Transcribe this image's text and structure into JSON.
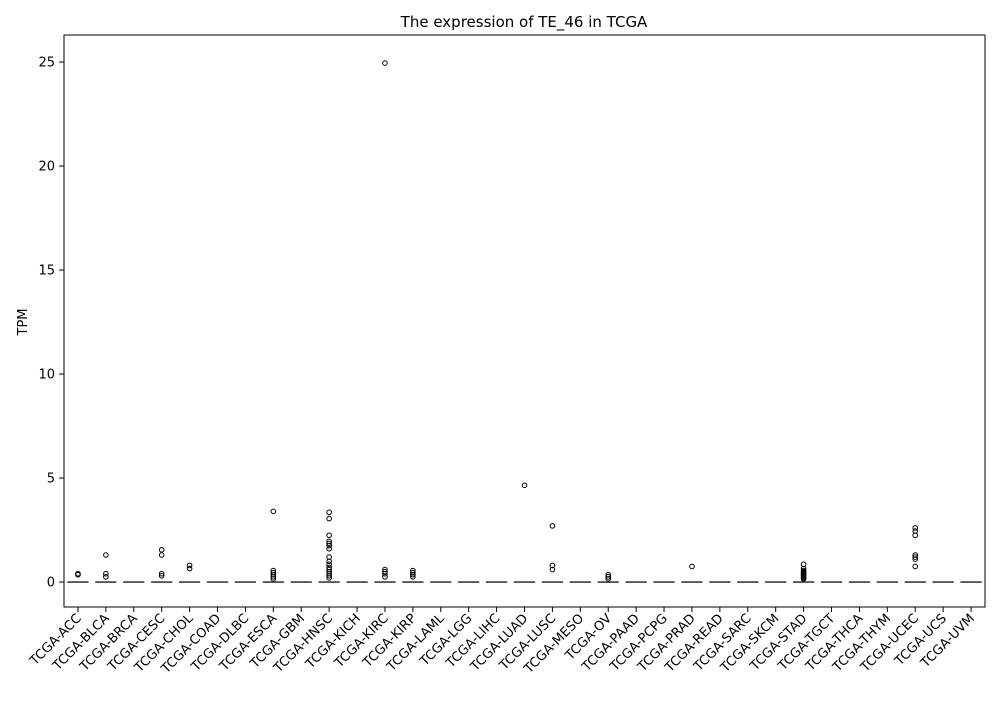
{
  "chart_data": {
    "type": "box",
    "title": "The expression of TE_46 in TCGA",
    "xlabel": "",
    "ylabel": "TPM",
    "ylim": [
      -1.2,
      26.3
    ],
    "yticks": [
      0,
      5,
      10,
      15,
      20,
      25
    ],
    "grid": false,
    "categories": [
      "TCGA-ACC",
      "TCGA-BLCA",
      "TCGA-BRCA",
      "TCGA-CESC",
      "TCGA-CHOL",
      "TCGA-COAD",
      "TCGA-DLBC",
      "TCGA-ESCA",
      "TCGA-GBM",
      "TCGA-HNSC",
      "TCGA-KICH",
      "TCGA-KIRC",
      "TCGA-KIRP",
      "TCGA-LAML",
      "TCGA-LGG",
      "TCGA-LIHC",
      "TCGA-LUAD",
      "TCGA-LUSC",
      "TCGA-MESO",
      "TCGA-OV",
      "TCGA-PAAD",
      "TCGA-PCPG",
      "TCGA-PRAD",
      "TCGA-READ",
      "TCGA-SARC",
      "TCGA-SKCM",
      "TCGA-STAD",
      "TCGA-TGCT",
      "TCGA-THCA",
      "TCGA-THYM",
      "TCGA-UCEC",
      "TCGA-UCS",
      "TCGA-UVM"
    ],
    "medians": [
      0,
      0,
      0,
      0,
      0,
      0,
      0,
      0,
      0,
      0,
      0,
      0,
      0,
      0,
      0,
      0,
      0,
      0,
      0,
      0,
      0,
      0,
      0,
      0,
      0,
      0,
      0,
      0,
      0,
      0,
      0,
      0,
      0
    ],
    "outliers": [
      [
        0.35,
        0.4
      ],
      [
        1.3,
        0.4,
        0.25
      ],
      [],
      [
        1.55,
        1.3,
        0.4,
        0.3
      ],
      [
        0.8,
        0.65
      ],
      [],
      [],
      [
        3.4,
        0.55,
        0.45,
        0.35,
        0.25,
        0.15
      ],
      [],
      [
        3.35,
        3.05,
        2.25,
        1.95,
        1.85,
        1.75,
        1.6,
        1.2,
        1.0,
        0.85,
        0.7,
        0.6,
        0.5,
        0.4,
        0.3,
        0.2
      ],
      [],
      [
        24.95,
        0.6,
        0.5,
        0.4,
        0.25
      ],
      [
        0.55,
        0.45,
        0.35,
        0.25
      ],
      [],
      [],
      [],
      [
        4.65
      ],
      [
        2.7,
        0.8,
        0.6
      ],
      [],
      [
        0.35,
        0.25,
        0.15
      ],
      [],
      [],
      [
        0.75
      ],
      [],
      [],
      [],
      [
        0.85,
        0.65,
        0.55,
        0.5,
        0.45,
        0.4,
        0.35,
        0.3,
        0.25,
        0.2,
        0.15
      ],
      [],
      [],
      [],
      [
        2.6,
        2.45,
        2.25,
        1.3,
        1.2,
        1.1,
        0.75
      ],
      [],
      []
    ]
  }
}
